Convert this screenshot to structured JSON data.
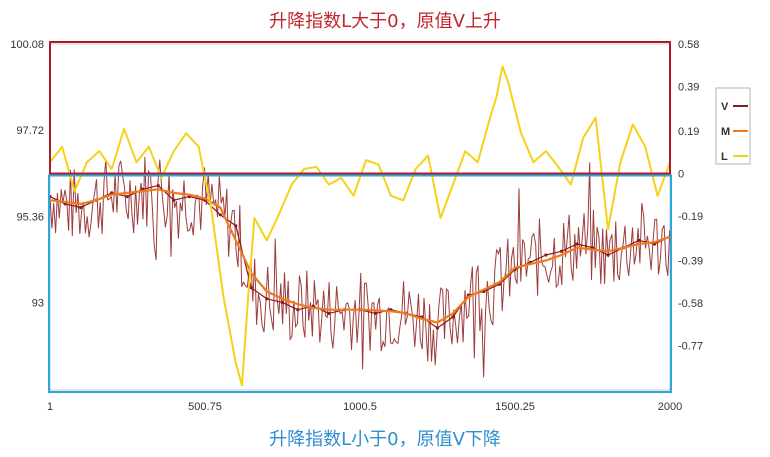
{
  "annotations": {
    "top_caption": "升降指数L大于0，原值V上升",
    "bottom_caption": "升降指数L小于0，原值V下降",
    "top_box_color": "#b01c24",
    "bottom_box_color": "#2aa6e0"
  },
  "chart_data": {
    "type": "line",
    "title": "",
    "xlabel": "",
    "ylabel": "",
    "x_ticks": [
      "1",
      "500.75",
      "1000.5",
      "1500.25",
      "2000"
    ],
    "xlim": [
      1,
      2000
    ],
    "y_left_ticks": [
      "100.08",
      "97.72",
      "95.36",
      "93"
    ],
    "ylim_left": [
      90.6,
      100.08
    ],
    "y_right_ticks": [
      "0.58",
      "0.39",
      "0.19",
      "0",
      "-0.19",
      "-0.39",
      "-0.58",
      "-0.77"
    ],
    "ylim_right": [
      -0.97,
      0.58
    ],
    "grid": false,
    "legend_position": "right",
    "series": [
      {
        "name": "V",
        "axis": "left",
        "color": "#8b1a1a",
        "x": [
          1,
          50,
          100,
          150,
          200,
          250,
          300,
          350,
          400,
          450,
          500,
          550,
          600,
          650,
          700,
          750,
          800,
          850,
          900,
          950,
          1000,
          1050,
          1100,
          1150,
          1200,
          1250,
          1300,
          1350,
          1400,
          1450,
          1500,
          1550,
          1600,
          1650,
          1700,
          1750,
          1800,
          1850,
          1900,
          1950,
          2000
        ],
        "values": [
          95.9,
          95.7,
          95.6,
          95.8,
          96.0,
          95.9,
          96.1,
          96.2,
          95.8,
          95.9,
          95.8,
          95.4,
          95.1,
          93.4,
          93.1,
          93.0,
          92.8,
          92.9,
          92.7,
          92.8,
          92.8,
          92.7,
          92.8,
          92.7,
          92.6,
          92.3,
          92.6,
          93.2,
          93.3,
          93.5,
          93.9,
          94.1,
          94.3,
          94.4,
          94.6,
          94.5,
          94.3,
          94.5,
          94.7,
          94.6,
          94.8
        ]
      },
      {
        "name": "M",
        "axis": "left",
        "color": "#f07a1c",
        "x": [
          1,
          50,
          100,
          150,
          200,
          250,
          300,
          350,
          400,
          450,
          500,
          550,
          600,
          650,
          700,
          750,
          800,
          850,
          900,
          950,
          1000,
          1050,
          1100,
          1150,
          1200,
          1250,
          1300,
          1350,
          1400,
          1450,
          1500,
          1550,
          1600,
          1650,
          1700,
          1750,
          1800,
          1850,
          1900,
          1950,
          2000
        ],
        "values": [
          95.8,
          95.75,
          95.7,
          95.8,
          95.95,
          96.0,
          96.05,
          96.1,
          96.0,
          95.95,
          95.85,
          95.6,
          94.7,
          93.8,
          93.3,
          93.1,
          92.95,
          92.85,
          92.8,
          92.8,
          92.8,
          92.78,
          92.76,
          92.7,
          92.55,
          92.45,
          92.7,
          93.15,
          93.35,
          93.55,
          93.95,
          94.05,
          94.15,
          94.3,
          94.5,
          94.45,
          94.4,
          94.5,
          94.6,
          94.65,
          94.8
        ]
      },
      {
        "name": "L",
        "axis": "right",
        "color": "#f5d21a",
        "x": [
          1,
          40,
          80,
          120,
          160,
          200,
          240,
          280,
          320,
          360,
          400,
          440,
          480,
          520,
          560,
          600,
          620,
          640,
          660,
          700,
          740,
          780,
          820,
          860,
          900,
          940,
          980,
          1020,
          1060,
          1100,
          1140,
          1180,
          1220,
          1260,
          1300,
          1340,
          1380,
          1420,
          1440,
          1460,
          1480,
          1520,
          1560,
          1600,
          1640,
          1680,
          1720,
          1760,
          1800,
          1840,
          1880,
          1920,
          1960,
          2000
        ],
        "values": [
          0.05,
          0.12,
          -0.08,
          0.05,
          0.1,
          0.02,
          0.2,
          0.05,
          0.12,
          -0.02,
          0.1,
          0.18,
          0.12,
          -0.15,
          -0.55,
          -0.85,
          -0.95,
          -0.55,
          -0.2,
          -0.3,
          -0.18,
          -0.05,
          0.02,
          0.03,
          -0.05,
          -0.02,
          -0.1,
          0.06,
          0.04,
          -0.1,
          -0.12,
          0.02,
          0.08,
          -0.2,
          -0.05,
          0.1,
          0.05,
          0.25,
          0.34,
          0.48,
          0.4,
          0.18,
          0.05,
          0.1,
          0.03,
          -0.05,
          0.16,
          0.25,
          -0.25,
          0.05,
          0.22,
          0.12,
          -0.1,
          0.05
        ]
      }
    ]
  }
}
